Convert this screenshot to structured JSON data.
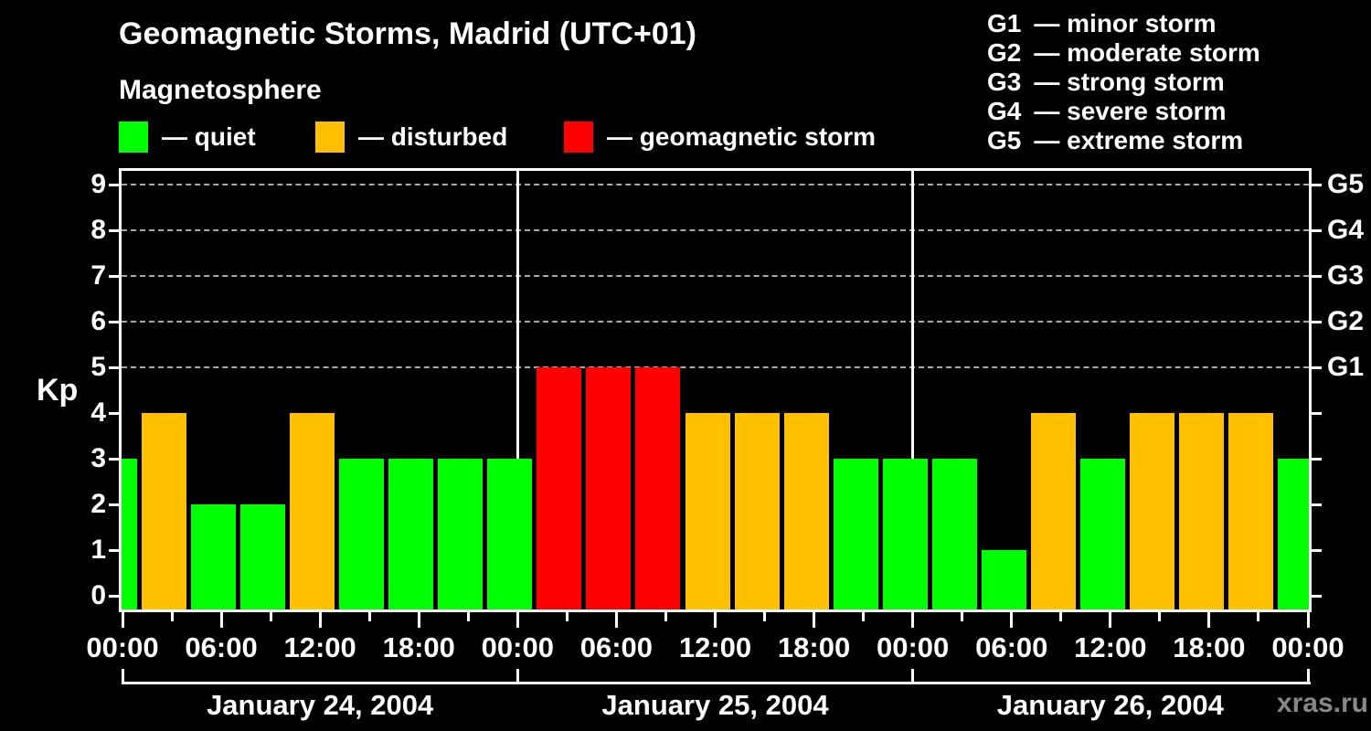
{
  "header": {
    "title": "Geomagnetic Storms, Madrid (UTC+01)",
    "subtitle": "Magnetosphere"
  },
  "legend": {
    "items": [
      {
        "key": "quiet",
        "label": "— quiet",
        "color": "#00ff00"
      },
      {
        "key": "disturbed",
        "label": "— disturbed",
        "color": "#ffc000"
      },
      {
        "key": "storm",
        "label": "— geomagnetic storm",
        "color": "#ff0000"
      }
    ]
  },
  "storm_scale_legend": {
    "items": [
      {
        "code": "G1",
        "label": "— minor storm"
      },
      {
        "code": "G2",
        "label": "— moderate storm"
      },
      {
        "code": "G3",
        "label": "— strong storm"
      },
      {
        "code": "G4",
        "label": "— severe storm"
      },
      {
        "code": "G5",
        "label": "— extreme storm"
      }
    ]
  },
  "watermark": "xras.ru",
  "chart_data": {
    "type": "bar",
    "title": "Geomagnetic Storms, Madrid (UTC+01)",
    "subtitle": "Magnetosphere",
    "ylabel": "Kp",
    "ylim": [
      0,
      9
    ],
    "y_ticks": [
      0,
      1,
      2,
      3,
      4,
      5,
      6,
      7,
      8,
      9
    ],
    "gridlines_kp": [
      5,
      6,
      7,
      8,
      9
    ],
    "grid_style": "dashed gray horizontal lines at G1–G5 levels",
    "right_axis": [
      {
        "label": "G1",
        "kp": 5
      },
      {
        "label": "G2",
        "kp": 6
      },
      {
        "label": "G3",
        "kp": 7
      },
      {
        "label": "G4",
        "kp": 8
      },
      {
        "label": "G5",
        "kp": 9
      }
    ],
    "x_tick_labels": [
      "00:00",
      "06:00",
      "12:00",
      "18:00",
      "00:00",
      "06:00",
      "12:00",
      "18:00",
      "00:00",
      "06:00",
      "12:00",
      "18:00",
      "00:00"
    ],
    "x_minor_tick_hours": 3,
    "x_major_tick_hours": 6,
    "days": [
      {
        "date": "January 24, 2004",
        "kp_values": [
          3,
          4,
          2,
          2,
          4,
          3,
          3,
          3
        ]
      },
      {
        "date": "January 25, 2004",
        "kp_values": [
          3,
          5,
          5,
          5,
          4,
          4,
          4,
          3
        ]
      },
      {
        "date": "January 26, 2004",
        "kp_values": [
          3,
          3,
          1,
          4,
          3,
          4,
          4,
          4
        ]
      }
    ],
    "bars": [
      {
        "hour": 0,
        "kp": 3,
        "state": "quiet"
      },
      {
        "hour": 3,
        "kp": 4,
        "state": "disturbed"
      },
      {
        "hour": 6,
        "kp": 2,
        "state": "quiet"
      },
      {
        "hour": 9,
        "kp": 2,
        "state": "quiet"
      },
      {
        "hour": 12,
        "kp": 4,
        "state": "disturbed"
      },
      {
        "hour": 15,
        "kp": 3,
        "state": "quiet"
      },
      {
        "hour": 18,
        "kp": 3,
        "state": "quiet"
      },
      {
        "hour": 21,
        "kp": 3,
        "state": "quiet"
      },
      {
        "hour": 24,
        "kp": 3,
        "state": "quiet"
      },
      {
        "hour": 27,
        "kp": 5,
        "state": "storm"
      },
      {
        "hour": 30,
        "kp": 5,
        "state": "storm"
      },
      {
        "hour": 33,
        "kp": 5,
        "state": "storm"
      },
      {
        "hour": 36,
        "kp": 4,
        "state": "disturbed"
      },
      {
        "hour": 39,
        "kp": 4,
        "state": "disturbed"
      },
      {
        "hour": 42,
        "kp": 4,
        "state": "disturbed"
      },
      {
        "hour": 45,
        "kp": 3,
        "state": "quiet"
      },
      {
        "hour": 48,
        "kp": 3,
        "state": "quiet"
      },
      {
        "hour": 51,
        "kp": 3,
        "state": "quiet"
      },
      {
        "hour": 54,
        "kp": 1,
        "state": "quiet"
      },
      {
        "hour": 57,
        "kp": 4,
        "state": "disturbed"
      },
      {
        "hour": 60,
        "kp": 3,
        "state": "quiet"
      },
      {
        "hour": 63,
        "kp": 4,
        "state": "disturbed"
      },
      {
        "hour": 66,
        "kp": 4,
        "state": "disturbed"
      },
      {
        "hour": 69,
        "kp": 4,
        "state": "disturbed"
      },
      {
        "hour": 72,
        "kp": 3,
        "state": "quiet"
      }
    ],
    "colors": {
      "quiet": "#00ff00",
      "disturbed": "#ffc000",
      "storm": "#ff0000"
    }
  }
}
